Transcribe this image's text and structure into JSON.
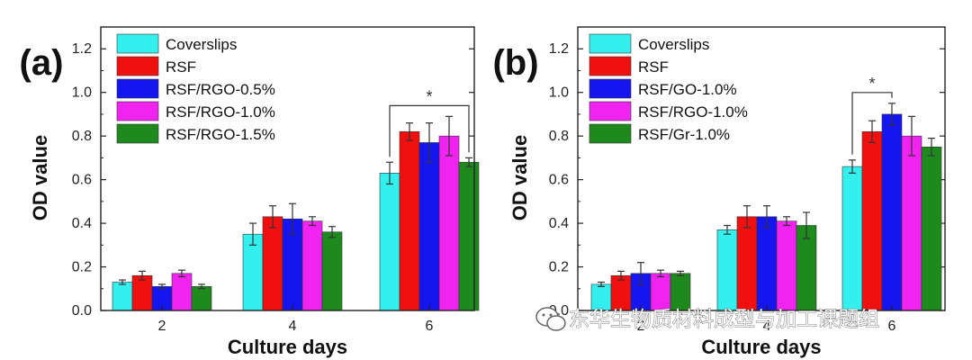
{
  "chart_data": [
    {
      "type": "bar",
      "panel_label": "(a)",
      "categories": [
        "2",
        "4",
        "6"
      ],
      "xlabel": "Culture days",
      "ylabel": "OD value",
      "ylim": [
        0,
        1.3
      ],
      "yticks": [
        "0.0",
        "0.2",
        "0.4",
        "0.6",
        "0.8",
        "1.0",
        "1.2"
      ],
      "legend_position": "top-left",
      "series": [
        {
          "name": "Coverslips",
          "color": "#33f0ee",
          "values": [
            0.13,
            0.35,
            0.63
          ],
          "errors": [
            0.01,
            0.05,
            0.05
          ]
        },
        {
          "name": "RSF",
          "color": "#f01010",
          "values": [
            0.16,
            0.43,
            0.82
          ],
          "errors": [
            0.02,
            0.05,
            0.04
          ]
        },
        {
          "name": "RSF/RGO-0.5%",
          "color": "#1515f0",
          "values": [
            0.11,
            0.42,
            0.77
          ],
          "errors": [
            0.01,
            0.07,
            0.09
          ]
        },
        {
          "name": "RSF/RGO-1.0%",
          "color": "#f023f0",
          "values": [
            0.17,
            0.41,
            0.8
          ],
          "errors": [
            0.015,
            0.02,
            0.09
          ]
        },
        {
          "name": "RSF/RGO-1.5%",
          "color": "#1e8a1e",
          "values": [
            0.11,
            0.36,
            0.68
          ],
          "errors": [
            0.01,
            0.025,
            0.02
          ]
        }
      ],
      "significance": {
        "label": "*",
        "category": 2,
        "from_series": 0,
        "to_series": 4
      }
    },
    {
      "type": "bar",
      "panel_label": "(b)",
      "categories": [
        "2",
        "4",
        "6"
      ],
      "xlabel": "Culture days",
      "ylabel": "OD value",
      "ylim": [
        0,
        1.3
      ],
      "yticks": [
        "0.0",
        "0.2",
        "0.4",
        "0.6",
        "0.8",
        "1.0",
        "1.2"
      ],
      "legend_position": "top-left",
      "series": [
        {
          "name": "Coverslips",
          "color": "#33f0ee",
          "values": [
            0.12,
            0.37,
            0.66
          ],
          "errors": [
            0.01,
            0.02,
            0.03
          ]
        },
        {
          "name": "RSF",
          "color": "#f01010",
          "values": [
            0.16,
            0.43,
            0.82
          ],
          "errors": [
            0.02,
            0.05,
            0.05
          ]
        },
        {
          "name": "RSF/GO-1.0%",
          "color": "#1515f0",
          "values": [
            0.17,
            0.43,
            0.9
          ],
          "errors": [
            0.05,
            0.05,
            0.05
          ]
        },
        {
          "name": "RSF/RGO-1.0%",
          "color": "#f023f0",
          "values": [
            0.17,
            0.41,
            0.8
          ],
          "errors": [
            0.015,
            0.02,
            0.09
          ]
        },
        {
          "name": "RSF/Gr-1.0%",
          "color": "#1e8a1e",
          "values": [
            0.17,
            0.39,
            0.75
          ],
          "errors": [
            0.01,
            0.06,
            0.04
          ]
        }
      ],
      "significance": {
        "label": "*",
        "category": 2,
        "from_series": 0,
        "to_series": 2
      }
    }
  ],
  "watermark": {
    "text": "东华生物质材料成型与加工课题组",
    "icon": "wechat-icon"
  }
}
